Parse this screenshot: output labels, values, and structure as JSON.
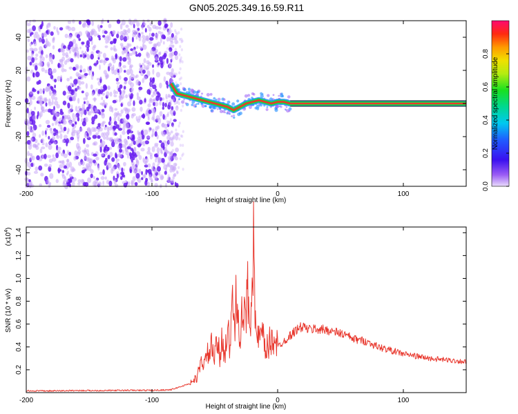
{
  "figure": {
    "title": "GN05.2025.349.16.59.R11"
  },
  "colors": {
    "snr_line": "#e8382e",
    "track_core": "#e83a2a",
    "track_edge": "#17d84a",
    "track_halo": "#1f8cff",
    "noise_dark": "#6a1ef0",
    "noise_light": "#c8a8f8"
  },
  "chart_data": [
    {
      "type": "heatmap",
      "title": "GN05.2025.349.16.59.R11",
      "xlabel": "Height of straight line (km)",
      "ylabel": "Frequency (Hz)",
      "xlim": [
        -200,
        150
      ],
      "ylim": [
        -50,
        50
      ],
      "xticks": [
        -200,
        -100,
        0,
        100
      ],
      "yticks": [
        -40,
        -20,
        0,
        20,
        40
      ],
      "colorbar": {
        "label": "Normalized spectral amplitude",
        "range": [
          0,
          1
        ],
        "ticks": [
          "0.0",
          "0.2",
          "0.4",
          "0.6",
          "0.8"
        ],
        "tick_values": [
          0,
          0.2,
          0.4,
          0.6,
          0.8
        ]
      },
      "regions": [
        {
          "description": "broadband noise",
          "x": [
            -200,
            -80
          ],
          "freq": [
            -50,
            50
          ],
          "amplitude": [
            0.05,
            0.25
          ]
        },
        {
          "description": "wandering signal track",
          "x": [
            -80,
            10
          ],
          "freq": [
            -5,
            5
          ],
          "amplitude": [
            0.4,
            1.0
          ]
        },
        {
          "description": "steady signal track",
          "x": [
            10,
            150
          ],
          "freq": [
            0,
            0
          ],
          "amplitude": [
            0.9,
            1.0
          ]
        }
      ],
      "track": {
        "x": [
          -85,
          -80,
          -75,
          -70,
          -65,
          -60,
          -55,
          -50,
          -45,
          -40,
          -35,
          -30,
          -25,
          -20,
          -15,
          -10,
          -5,
          0,
          5,
          10,
          150
        ],
        "freq": [
          12,
          6,
          5,
          4,
          3,
          2,
          1,
          0,
          -1,
          -2,
          -4,
          -2,
          0,
          1,
          2,
          1,
          0,
          1,
          1,
          0,
          0
        ]
      },
      "grid": false
    },
    {
      "type": "line",
      "xlabel": "Height of straight line (km)",
      "ylabel": "SNR (10 * v/v)",
      "y_multiplier": "(x10",
      "y_multiplier_exp": "4",
      "y_multiplier_close": ")",
      "xlim": [
        -200,
        150
      ],
      "ylim": [
        0,
        1.45
      ],
      "xticks": [
        -200,
        -100,
        0,
        100
      ],
      "yticks": [
        "0.2",
        "0.4",
        "0.6",
        "0.8",
        "1.0",
        "1.2",
        "1.4"
      ],
      "ytick_values": [
        0.2,
        0.4,
        0.6,
        0.8,
        1.0,
        1.2,
        1.4
      ],
      "series": [
        {
          "x": [
            -200,
            -180,
            -160,
            -140,
            -120,
            -100,
            -85,
            -75,
            -70,
            -65,
            -62,
            -60,
            -58,
            -55,
            -52,
            -50,
            -48,
            -46,
            -44,
            -42,
            -40,
            -38,
            -36,
            -34,
            -32,
            -30,
            -28,
            -26,
            -24,
            -22,
            -20,
            -19,
            -18,
            -16,
            -14,
            -12,
            -10,
            -8,
            -5,
            -2,
            0,
            5,
            10,
            15,
            20,
            25,
            30,
            35,
            40,
            45,
            50,
            55,
            60,
            70,
            80,
            90,
            100,
            110,
            120,
            130,
            140,
            150
          ],
          "values": [
            0.015,
            0.015,
            0.018,
            0.018,
            0.02,
            0.02,
            0.025,
            0.06,
            0.08,
            0.12,
            0.2,
            0.3,
            0.25,
            0.35,
            0.4,
            0.3,
            0.45,
            0.3,
            0.5,
            0.35,
            0.55,
            0.4,
            0.75,
            0.6,
            1.0,
            0.4,
            0.7,
            0.6,
            0.9,
            0.6,
            1.2,
            1.42,
            0.55,
            0.5,
            0.45,
            0.5,
            0.35,
            0.4,
            0.45,
            0.5,
            0.4,
            0.45,
            0.5,
            0.55,
            0.58,
            0.55,
            0.56,
            0.55,
            0.55,
            0.53,
            0.52,
            0.5,
            0.47,
            0.45,
            0.4,
            0.37,
            0.34,
            0.32,
            0.3,
            0.29,
            0.28,
            0.27
          ]
        }
      ],
      "grid": false
    }
  ]
}
